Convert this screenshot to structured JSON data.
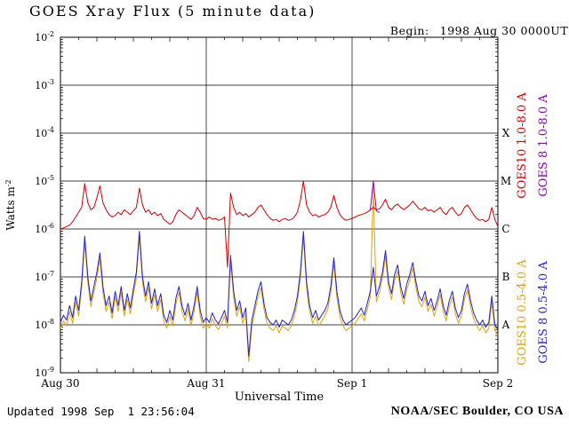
{
  "header": {
    "title": "GOES Xray Flux (5 minute data)",
    "begin_label": "Begin:",
    "begin_value": "1998 Aug 30 0000UT"
  },
  "footer": {
    "updated": "Updated 1998 Sep  1 23:56:04",
    "credit": "NOAA/SEC Boulder, CO USA"
  },
  "chart_data": {
    "type": "line",
    "title": "GOES Xray Flux (5 minute data)",
    "xlabel": "Universal Time",
    "ylabel_base": "Watts m",
    "ylabel_exponent": "-2",
    "x_unit": "hours since 1998 Aug 30 0000UT",
    "x_range_hours": [
      0,
      72
    ],
    "x_ticks": [
      {
        "hours": 0,
        "label": "Aug 30"
      },
      {
        "hours": 24,
        "label": "Aug 31"
      },
      {
        "hours": 48,
        "label": "Sep 1"
      },
      {
        "hours": 72,
        "label": "Sep 2"
      }
    ],
    "y_scale": "log10",
    "y_range_log10": [
      -9,
      -2
    ],
    "y_ticks_log10": [
      -2,
      -3,
      -4,
      -5,
      -6,
      -7,
      -8,
      -9
    ],
    "flare_class_labels": [
      {
        "label": "X",
        "log10_flux": -4
      },
      {
        "label": "M",
        "log10_flux": -5
      },
      {
        "label": "C",
        "log10_flux": -6
      },
      {
        "label": "B",
        "log10_flux": -7
      },
      {
        "label": "A",
        "log10_flux": -8
      }
    ],
    "grid": true,
    "sample_step_hours": 0.5,
    "series": [
      {
        "name": "GOES10 0.5-4.0 A",
        "color": "#e0a312",
        "legend_column": 1,
        "legend_band": "lower",
        "log10_values": [
          -8.07,
          -7.92,
          -8.02,
          -7.72,
          -7.97,
          -7.52,
          -7.82,
          -7.22,
          -6.27,
          -7.12,
          -7.62,
          -7.32,
          -7.02,
          -6.62,
          -7.32,
          -7.72,
          -7.52,
          -7.87,
          -7.42,
          -7.72,
          -7.32,
          -7.82,
          -7.47,
          -7.77,
          -7.37,
          -7.02,
          -6.17,
          -7.12,
          -7.52,
          -7.22,
          -7.67,
          -7.37,
          -7.72,
          -7.47,
          -7.92,
          -8.07,
          -7.82,
          -8.02,
          -7.57,
          -7.32,
          -7.72,
          -7.92,
          -7.67,
          -8.02,
          -7.72,
          -7.32,
          -7.82,
          -8.07,
          -7.97,
          -8.07,
          -7.87,
          -8.02,
          -8.1,
          -7.97,
          -7.82,
          -8.07,
          -6.67,
          -7.42,
          -7.82,
          -7.62,
          -7.97,
          -7.77,
          -8.77,
          -8.02,
          -7.72,
          -7.42,
          -7.22,
          -7.67,
          -7.97,
          -8.07,
          -8.12,
          -8.02,
          -8.17,
          -8.02,
          -8.07,
          -8.12,
          -8.02,
          -7.82,
          -7.52,
          -7.02,
          -6.17,
          -7.22,
          -7.72,
          -7.97,
          -7.82,
          -8.02,
          -7.92,
          -7.82,
          -7.67,
          -7.32,
          -6.72,
          -7.42,
          -7.82,
          -8.02,
          -8.12,
          -8.07,
          -8.02,
          -7.97,
          -7.87,
          -7.77,
          -7.92,
          -7.67,
          -7.42,
          -5.15,
          -7.52,
          -7.32,
          -7.02,
          -6.57,
          -7.22,
          -7.47,
          -7.07,
          -6.87,
          -7.32,
          -7.57,
          -7.27,
          -7.07,
          -6.82,
          -7.22,
          -7.52,
          -7.62,
          -7.42,
          -7.72,
          -7.57,
          -7.82,
          -7.62,
          -7.37,
          -7.72,
          -7.92,
          -7.62,
          -7.42,
          -7.77,
          -7.97,
          -7.82,
          -7.47,
          -7.27,
          -7.62,
          -7.87,
          -8.02,
          -8.12,
          -8.02,
          -8.17,
          -8.07,
          -7.52,
          -8.12,
          -8.22
        ]
      },
      {
        "name": "GOES 8 0.5-4.0 A",
        "color": "#2222cc",
        "legend_column": 2,
        "legend_band": "lower",
        "log10_values": [
          -7.95,
          -7.8,
          -7.9,
          -7.6,
          -7.85,
          -7.4,
          -7.7,
          -7.1,
          -6.15,
          -7.0,
          -7.5,
          -7.2,
          -6.9,
          -6.5,
          -7.2,
          -7.6,
          -7.4,
          -7.75,
          -7.3,
          -7.6,
          -7.2,
          -7.7,
          -7.35,
          -7.65,
          -7.25,
          -6.9,
          -6.05,
          -7.0,
          -7.4,
          -7.1,
          -7.55,
          -7.25,
          -7.6,
          -7.35,
          -7.8,
          -7.95,
          -7.7,
          -7.9,
          -7.45,
          -7.2,
          -7.6,
          -7.8,
          -7.55,
          -7.9,
          -7.6,
          -7.2,
          -7.7,
          -7.95,
          -7.85,
          -7.95,
          -7.75,
          -7.9,
          -7.98,
          -7.85,
          -7.7,
          -7.95,
          -6.55,
          -7.3,
          -7.7,
          -7.5,
          -7.85,
          -7.65,
          -8.65,
          -7.9,
          -7.6,
          -7.3,
          -7.1,
          -7.55,
          -7.85,
          -7.95,
          -8.0,
          -7.9,
          -8.05,
          -7.9,
          -7.95,
          -8.0,
          -7.9,
          -7.7,
          -7.4,
          -6.9,
          -6.05,
          -7.1,
          -7.6,
          -7.85,
          -7.7,
          -7.9,
          -7.8,
          -7.7,
          -7.55,
          -7.2,
          -6.6,
          -7.3,
          -7.7,
          -7.9,
          -8.0,
          -7.95,
          -7.9,
          -7.85,
          -7.75,
          -7.65,
          -7.8,
          -7.55,
          -7.3,
          -6.8,
          -7.4,
          -7.2,
          -6.9,
          -6.45,
          -7.1,
          -7.35,
          -6.95,
          -6.75,
          -7.2,
          -7.45,
          -7.15,
          -6.95,
          -6.7,
          -7.1,
          -7.4,
          -7.5,
          -7.3,
          -7.6,
          -7.45,
          -7.7,
          -7.5,
          -7.25,
          -7.6,
          -7.8,
          -7.5,
          -7.3,
          -7.65,
          -7.85,
          -7.7,
          -7.35,
          -7.15,
          -7.5,
          -7.75,
          -7.9,
          -8.0,
          -7.9,
          -8.05,
          -7.95,
          -7.4,
          -8.0,
          -8.1
        ]
      },
      {
        "name": "GOES 8 1.0-8.0 A",
        "color": "#8800aa",
        "legend_column": 2,
        "legend_band": "upper",
        "points_t_hours": [
          50.5,
          51,
          51.5,
          52,
          52.5
        ],
        "log10_values": [
          -5.65,
          -5.6,
          -5.0,
          -5.62,
          -5.66
        ]
      },
      {
        "name": "GOES10 1.0-8.0 A",
        "color": "#d40000",
        "legend_column": 1,
        "legend_band": "upper",
        "log10_values": [
          -6.0,
          -5.98,
          -5.95,
          -5.92,
          -5.85,
          -5.75,
          -5.65,
          -5.55,
          -5.05,
          -5.45,
          -5.6,
          -5.55,
          -5.35,
          -5.1,
          -5.45,
          -5.6,
          -5.7,
          -5.75,
          -5.72,
          -5.65,
          -5.7,
          -5.6,
          -5.65,
          -5.7,
          -5.62,
          -5.55,
          -5.15,
          -5.5,
          -5.65,
          -5.6,
          -5.7,
          -5.65,
          -5.72,
          -5.68,
          -5.8,
          -5.85,
          -5.9,
          -5.85,
          -5.7,
          -5.6,
          -5.65,
          -5.7,
          -5.75,
          -5.8,
          -5.72,
          -5.55,
          -5.65,
          -5.78,
          -5.8,
          -5.75,
          -5.8,
          -5.78,
          -5.82,
          -5.8,
          -5.75,
          -6.8,
          -5.25,
          -5.55,
          -5.7,
          -5.65,
          -5.72,
          -5.68,
          -5.75,
          -5.7,
          -5.65,
          -5.55,
          -5.5,
          -5.6,
          -5.7,
          -5.78,
          -5.82,
          -5.8,
          -5.85,
          -5.8,
          -5.78,
          -5.82,
          -5.8,
          -5.75,
          -5.65,
          -5.4,
          -5.0,
          -5.5,
          -5.65,
          -5.72,
          -5.7,
          -5.75,
          -5.72,
          -5.7,
          -5.65,
          -5.55,
          -5.3,
          -5.55,
          -5.7,
          -5.78,
          -5.82,
          -5.8,
          -5.78,
          -5.75,
          -5.72,
          -5.7,
          -5.68,
          -5.65,
          -5.6,
          -5.55,
          -5.6,
          -5.58,
          -5.5,
          -5.38,
          -5.55,
          -5.6,
          -5.52,
          -5.48,
          -5.55,
          -5.6,
          -5.55,
          -5.5,
          -5.42,
          -5.5,
          -5.58,
          -5.6,
          -5.55,
          -5.62,
          -5.6,
          -5.65,
          -5.6,
          -5.55,
          -5.65,
          -5.7,
          -5.6,
          -5.55,
          -5.65,
          -5.72,
          -5.68,
          -5.55,
          -5.5,
          -5.6,
          -5.7,
          -5.78,
          -5.82,
          -5.8,
          -5.85,
          -5.8,
          -5.55,
          -5.8,
          -5.95
        ]
      }
    ],
    "legend_position": "right-vertical"
  }
}
